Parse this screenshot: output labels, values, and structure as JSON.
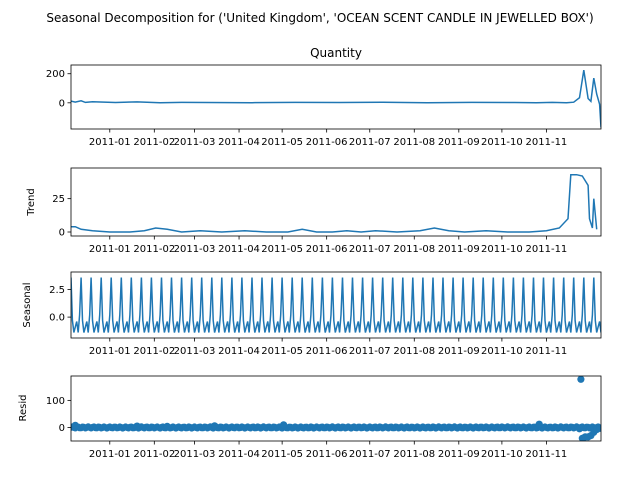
{
  "figure": {
    "suptitle": "Seasonal Decomposition for ('United Kingdom', 'OCEAN SCENT CANDLE IN JEWELLED BOX')"
  },
  "colors": {
    "series": "#1f77b4",
    "axis": "#000000"
  },
  "chart_data": [
    {
      "type": "line",
      "panel": "observed",
      "title": "Quantity",
      "xlabel": "",
      "ylabel": "",
      "x_range": [
        "2010-12-05",
        "2011-12-09"
      ],
      "x_ticks": [
        "2011-01",
        "2011-02",
        "2011-03",
        "2011-04",
        "2011-05",
        "2011-06",
        "2011-07",
        "2011-08",
        "2011-09",
        "2011-10",
        "2011-11"
      ],
      "y_ticks": [
        0,
        200
      ],
      "ylim": [
        -180,
        260
      ],
      "series": [
        {
          "x": [
            "2010-12-05",
            "2010-12-08",
            "2010-12-12",
            "2010-12-15",
            "2010-12-20",
            "2011-01-05",
            "2011-01-20",
            "2011-02-05",
            "2011-02-20",
            "2011-03-10",
            "2011-04-10",
            "2011-05-10",
            "2011-06-10",
            "2011-07-10",
            "2011-08-10",
            "2011-09-10",
            "2011-10-10",
            "2011-10-25",
            "2011-11-05",
            "2011-11-15",
            "2011-11-20",
            "2011-11-24",
            "2011-11-27",
            "2011-11-30",
            "2011-12-02",
            "2011-12-04",
            "2011-12-06",
            "2011-12-08",
            "2011-12-09"
          ],
          "values": [
            12,
            5,
            14,
            3,
            8,
            2,
            6,
            1,
            3,
            2,
            1,
            3,
            2,
            4,
            1,
            3,
            2,
            1,
            3,
            1,
            4,
            35,
            225,
            30,
            10,
            170,
            60,
            -10,
            -170
          ]
        }
      ]
    },
    {
      "type": "line",
      "panel": "trend",
      "title": "",
      "xlabel": "",
      "ylabel": "Trend",
      "x_range": [
        "2010-12-05",
        "2011-12-09"
      ],
      "x_ticks": [
        "2011-01",
        "2011-02",
        "2011-03",
        "2011-04",
        "2011-05",
        "2011-06",
        "2011-07",
        "2011-08",
        "2011-09",
        "2011-10",
        "2011-11"
      ],
      "y_ticks": [
        0,
        25
      ],
      "ylim": [
        -3,
        48
      ],
      "series": [
        {
          "x": [
            "2010-12-05",
            "2010-12-08",
            "2010-12-12",
            "2010-12-20",
            "2011-01-01",
            "2011-01-15",
            "2011-01-25",
            "2011-02-02",
            "2011-02-10",
            "2011-02-20",
            "2011-03-05",
            "2011-03-20",
            "2011-04-05",
            "2011-04-20",
            "2011-05-05",
            "2011-05-15",
            "2011-05-25",
            "2011-06-05",
            "2011-06-15",
            "2011-06-25",
            "2011-07-05",
            "2011-07-20",
            "2011-08-05",
            "2011-08-15",
            "2011-08-25",
            "2011-09-05",
            "2011-09-20",
            "2011-10-05",
            "2011-10-20",
            "2011-11-01",
            "2011-11-10",
            "2011-11-16",
            "2011-11-18",
            "2011-11-22",
            "2011-11-26",
            "2011-11-30",
            "2011-12-01",
            "2011-12-03",
            "2011-12-04",
            "2011-12-06"
          ],
          "values": [
            4,
            4,
            2,
            1,
            0,
            0,
            1,
            3,
            2,
            0,
            1,
            0,
            1,
            0,
            0,
            2,
            0,
            0,
            1,
            0,
            1,
            0,
            1,
            3,
            1,
            0,
            1,
            0,
            0,
            1,
            3,
            10,
            43,
            43,
            42,
            35,
            10,
            3,
            25,
            2
          ]
        }
      ]
    },
    {
      "type": "line",
      "panel": "seasonal",
      "title": "",
      "xlabel": "",
      "ylabel": "Seasonal",
      "x_range": [
        "2010-12-05",
        "2011-12-09"
      ],
      "x_ticks": [
        "2011-01",
        "2011-02",
        "2011-03",
        "2011-04",
        "2011-05",
        "2011-06",
        "2011-07",
        "2011-08",
        "2011-09",
        "2011-10",
        "2011-11"
      ],
      "y_ticks": [
        0.0,
        2.5
      ],
      "ylim": [
        -1.9,
        4.1
      ],
      "period_days": 7,
      "series": [
        {
          "cycle_values": [
            3.6,
            -0.3,
            -1.4,
            -0.9,
            -0.4,
            -1.4,
            0.2
          ]
        }
      ]
    },
    {
      "type": "scatter",
      "panel": "resid",
      "title": "",
      "xlabel": "",
      "ylabel": "Resid",
      "x_range": [
        "2010-12-05",
        "2011-12-09"
      ],
      "x_ticks": [
        "2011-01",
        "2011-02",
        "2011-03",
        "2011-04",
        "2011-05",
        "2011-06",
        "2011-07",
        "2011-08",
        "2011-09",
        "2011-10",
        "2011-11"
      ],
      "y_ticks": [
        0,
        100
      ],
      "ylim": [
        -50,
        190
      ],
      "series": [
        {
          "baseline": 0,
          "spread": 3,
          "x": [
            "2010-12-08",
            "2011-01-20",
            "2011-02-10",
            "2011-03-15",
            "2011-05-02",
            "2011-10-27",
            "2011-11-24",
            "2011-11-25",
            "2011-11-26",
            "2011-11-27",
            "2011-11-28",
            "2011-11-30",
            "2011-12-02",
            "2011-12-04",
            "2011-12-06",
            "2011-12-08"
          ],
          "values": [
            8,
            5,
            4,
            6,
            10,
            12,
            -5,
            178,
            -40,
            -38,
            -35,
            -35,
            -30,
            -18,
            -8,
            -3
          ]
        }
      ]
    }
  ]
}
